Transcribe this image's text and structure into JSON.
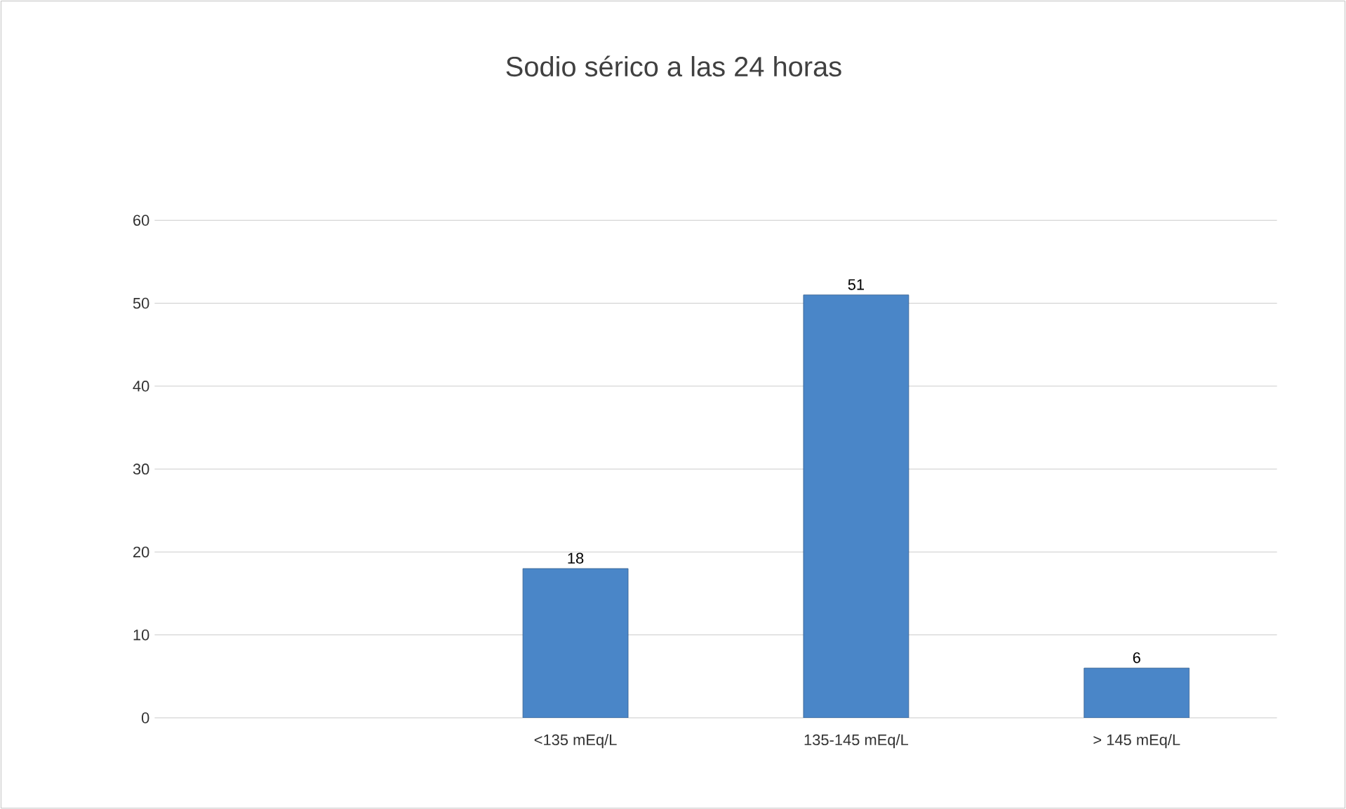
{
  "chart_data": {
    "type": "bar",
    "title": "Sodio sérico a las 24 horas",
    "categories": [
      null,
      "<135 mEq/L",
      "135-145 mEq/L",
      "> 145 mEq/L"
    ],
    "values": [
      null,
      18,
      51,
      6
    ],
    "color": "#4a86c8",
    "ylim": [
      0,
      60
    ],
    "yticks": [
      0,
      10,
      20,
      30,
      40,
      50,
      60
    ],
    "grid": "y",
    "data_labels": true
  }
}
